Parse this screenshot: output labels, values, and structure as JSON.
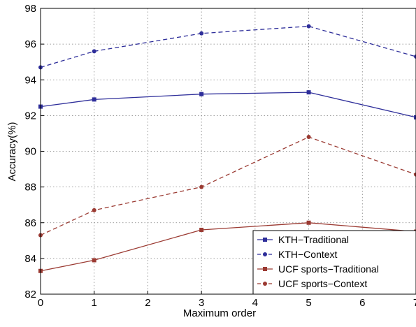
{
  "chart_data": {
    "type": "line",
    "title": "",
    "xlabel": "Maximum order",
    "ylabel": "Accuracy(%)",
    "x": [
      0,
      1,
      3,
      5,
      7
    ],
    "xlim": [
      0,
      7
    ],
    "ylim": [
      82,
      98
    ],
    "xticks": [
      0,
      1,
      2,
      3,
      4,
      5,
      6,
      7
    ],
    "yticks": [
      82,
      84,
      86,
      88,
      90,
      92,
      94,
      96,
      98
    ],
    "grid": true,
    "legend_position": "bottom-right",
    "series": [
      {
        "name": "KTH−Traditional",
        "values": [
          92.5,
          92.9,
          93.2,
          93.3,
          91.9
        ],
        "color": "#2e2e9a",
        "line_style": "solid",
        "marker": "square"
      },
      {
        "name": "KTH−Context",
        "values": [
          94.7,
          95.6,
          96.6,
          97.0,
          95.3
        ],
        "color": "#2e2e9a",
        "line_style": "dashed",
        "marker": "circle"
      },
      {
        "name": "UCF sports−Traditional",
        "values": [
          83.3,
          83.9,
          85.6,
          86.0,
          85.5
        ],
        "color": "#9b3a32",
        "line_style": "solid",
        "marker": "square"
      },
      {
        "name": "UCF sports−Context",
        "values": [
          85.3,
          86.7,
          88.0,
          90.8,
          88.7
        ],
        "color": "#9b3a32",
        "line_style": "dashed",
        "marker": "circle"
      }
    ]
  }
}
